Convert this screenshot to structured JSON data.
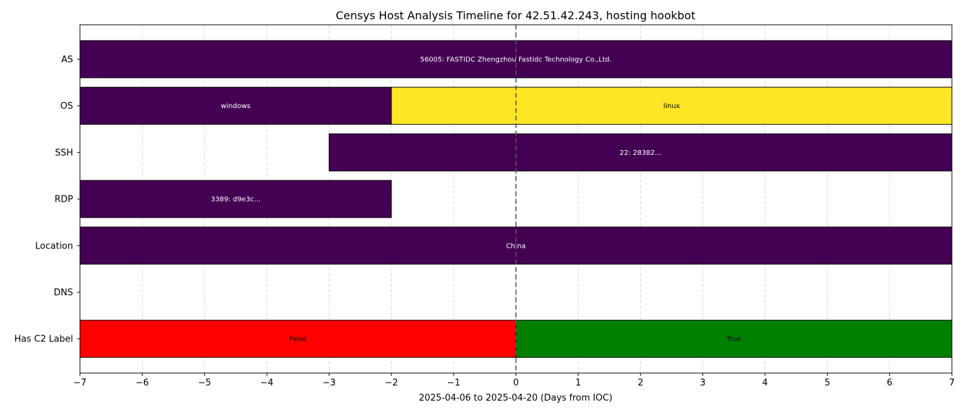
{
  "chart_data": {
    "type": "bar",
    "orientation": "horizontal-timeline",
    "title": "Censys Host Analysis Timeline for 42.51.42.243, hosting hookbot",
    "xlabel": "2025-04-06 to 2025-04-20 (Days from IOC)",
    "ylabel": "",
    "xlim": [
      -7,
      7
    ],
    "x_ticks": [
      -7,
      -6,
      -5,
      -4,
      -3,
      -2,
      -1,
      0,
      1,
      2,
      3,
      4,
      5,
      6,
      7
    ],
    "x_tick_labels": [
      "−7",
      "−6",
      "−5",
      "−4",
      "−3",
      "−2",
      "−1",
      "0",
      "1",
      "2",
      "3",
      "4",
      "5",
      "6",
      "7"
    ],
    "grid": "vertical-dashed",
    "ioc_marker_x": 0,
    "categories": [
      "AS",
      "OS",
      "SSH",
      "RDP",
      "Location",
      "DNS",
      "Has C2 Label"
    ],
    "segments": [
      {
        "category": "AS",
        "start": -7,
        "end": 7,
        "label": "56005: FASTIDC Zhengzhou Fastidc Technology Co.,Ltd.",
        "color": "#440154",
        "text_color": "#ffffff"
      },
      {
        "category": "OS",
        "start": -7,
        "end": -2,
        "label": "windows",
        "color": "#440154",
        "text_color": "#ffffff"
      },
      {
        "category": "OS",
        "start": -2,
        "end": 7,
        "label": "linux",
        "color": "#fde725",
        "text_color": "#000000"
      },
      {
        "category": "SSH",
        "start": -3,
        "end": 7,
        "label": "22: 28382...",
        "color": "#440154",
        "text_color": "#ffffff"
      },
      {
        "category": "RDP",
        "start": -7,
        "end": -2,
        "label": "3389: d9e3c...",
        "color": "#440154",
        "text_color": "#ffffff"
      },
      {
        "category": "Location",
        "start": -7,
        "end": 7,
        "label": "China",
        "color": "#440154",
        "text_color": "#ffffff"
      },
      {
        "category": "Has C2 Label",
        "start": -7,
        "end": 0,
        "label": "False",
        "color": "#ff0000",
        "text_color": "#000000"
      },
      {
        "category": "Has C2 Label",
        "start": 0,
        "end": 7,
        "label": "True",
        "color": "#008000",
        "text_color": "#000000"
      }
    ]
  }
}
